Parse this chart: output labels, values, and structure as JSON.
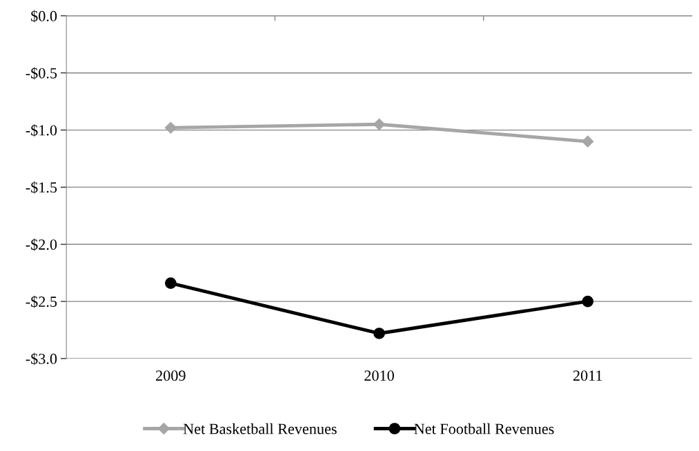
{
  "chart_data": {
    "type": "line",
    "categories": [
      "2009",
      "2010",
      "2011"
    ],
    "series": [
      {
        "name": "Net Basketball Revenues",
        "color": "#a6a6a6",
        "marker": "diamond",
        "values": [
          -0.98,
          -0.95,
          -1.1
        ]
      },
      {
        "name": "Net Football Revenues",
        "color": "#000000",
        "marker": "circle",
        "values": [
          -2.34,
          -2.78,
          -2.5
        ]
      }
    ],
    "ylim": [
      -3.0,
      0.0
    ],
    "yticks": [
      {
        "value": 0.0,
        "label": "$0.0"
      },
      {
        "value": -0.5,
        "label": "-$0.5"
      },
      {
        "value": -1.0,
        "label": "-$1.0"
      },
      {
        "value": -1.5,
        "label": "-$1.5"
      },
      {
        "value": -2.0,
        "label": "-$2.0"
      },
      {
        "value": -2.5,
        "label": "-$2.5"
      },
      {
        "value": -3.0,
        "label": "-$3.0"
      }
    ],
    "grid": "y",
    "legend": "bottom"
  }
}
